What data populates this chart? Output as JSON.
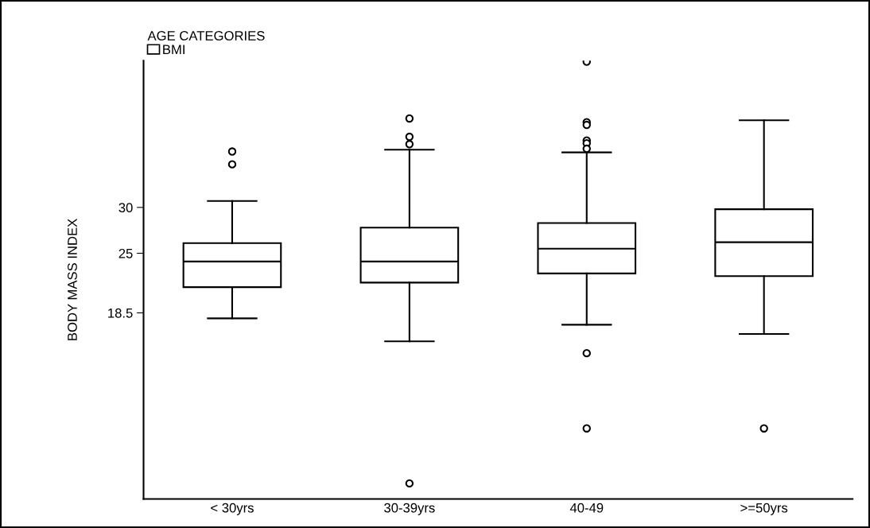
{
  "chart_data": {
    "type": "box",
    "ylabel": "BODY MASS INDEX",
    "legend_title": "AGE CATEGORIES",
    "legend": "top left",
    "categories": [
      "< 30yrs",
      "30-39yrs",
      "40-49",
      ">=50yrs"
    ],
    "ylim": [
      -1.8,
      46.0
    ],
    "yticks": [
      18.5,
      25,
      30
    ],
    "grid": false,
    "series": [
      {
        "name": "BMI",
        "color": "#000000",
        "boxes": [
          {
            "low": 17.9,
            "q1": 21.3,
            "median": 24.1,
            "q3": 26.1,
            "high": 30.7,
            "outliers": [
              36.1,
              34.7
            ]
          },
          {
            "low": 15.4,
            "q1": 21.8,
            "median": 24.1,
            "q3": 27.8,
            "high": 36.3,
            "outliers": [
              39.7,
              37.7,
              36.9,
              -0.1
            ]
          },
          {
            "low": 17.2,
            "q1": 22.8,
            "median": 25.5,
            "q3": 28.3,
            "high": 36.0,
            "outliers": [
              45.9,
              39.3,
              39.0,
              37.3,
              37.0,
              36.4,
              14.1,
              5.9
            ]
          },
          {
            "low": 16.2,
            "q1": 22.5,
            "median": 26.2,
            "q3": 29.8,
            "high": 39.5,
            "outliers": [
              5.9
            ]
          }
        ]
      }
    ]
  }
}
